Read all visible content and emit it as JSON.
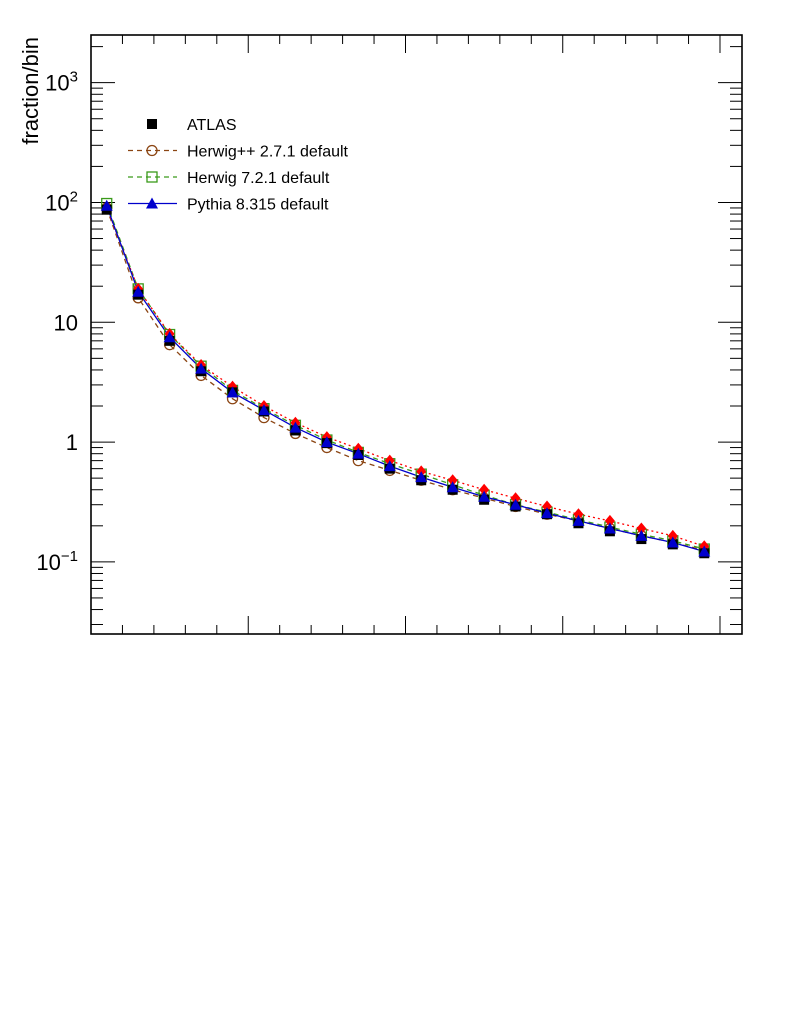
{
  "chart_data": {
    "type": "line",
    "title": "",
    "xlabel": "",
    "ylabel": "fraction/bin",
    "yscale": "log",
    "ylim": [
      0.025,
      2500
    ],
    "xlim": [
      0.5,
      21.2
    ],
    "grid": false,
    "legend_placement": "top-left",
    "y_tick_labels": [
      {
        "value": 1000,
        "base": "10",
        "exp": "3"
      },
      {
        "value": 100,
        "base": "10",
        "exp": "2"
      },
      {
        "value": 10,
        "base": "10",
        "exp": ""
      },
      {
        "value": 1,
        "base": "1",
        "exp": ""
      },
      {
        "value": 0.1,
        "base": "10",
        "exp": "−1"
      }
    ],
    "x": [
      1,
      2,
      3,
      4,
      5,
      6,
      7,
      8,
      9,
      10,
      11,
      12,
      13,
      14,
      15,
      16,
      17,
      18,
      19,
      20
    ],
    "series": [
      {
        "name": "ATLAS",
        "color": "#000000",
        "marker": "square-filled",
        "line": "none",
        "values": [
          87,
          17,
          7.0,
          3.9,
          2.6,
          1.8,
          1.25,
          0.98,
          0.78,
          0.6,
          0.48,
          0.4,
          0.33,
          0.29,
          0.25,
          0.21,
          0.18,
          0.155,
          0.14,
          0.118
        ]
      },
      {
        "name": "Herwig++ 2.7.1 default",
        "color": "#8b4513",
        "marker": "circle-open",
        "line": "dashed",
        "values": [
          90,
          16,
          6.5,
          3.6,
          2.3,
          1.6,
          1.18,
          0.9,
          0.7,
          0.58,
          0.48,
          0.4,
          0.34,
          0.29,
          0.25,
          0.22,
          0.19,
          0.165,
          0.145,
          0.125
        ]
      },
      {
        "name": "Herwig 7.2.1 default",
        "color": "#3a9a1a",
        "marker": "square-open",
        "line": "dashed",
        "values": [
          98,
          19,
          7.9,
          4.3,
          2.7,
          1.9,
          1.38,
          1.04,
          0.82,
          0.66,
          0.54,
          0.44,
          0.36,
          0.3,
          0.26,
          0.225,
          0.195,
          0.17,
          0.15,
          0.128
        ]
      },
      {
        "name": "Pythia 8.315 default",
        "color": "#0000cc",
        "marker": "triangle-filled",
        "line": "solid",
        "values": [
          94,
          18,
          7.5,
          4.1,
          2.6,
          1.85,
          1.32,
          1.0,
          0.8,
          0.63,
          0.51,
          0.42,
          0.35,
          0.3,
          0.255,
          0.22,
          0.19,
          0.165,
          0.145,
          0.122
        ]
      },
      {
        "name": "",
        "color": "#ff0000",
        "marker": "diamond-filled",
        "line": "dotted",
        "values": [
          91,
          19,
          8.0,
          4.4,
          2.9,
          2.0,
          1.45,
          1.1,
          0.88,
          0.7,
          0.57,
          0.48,
          0.4,
          0.34,
          0.29,
          0.25,
          0.22,
          0.19,
          0.165,
          0.135
        ]
      }
    ]
  }
}
